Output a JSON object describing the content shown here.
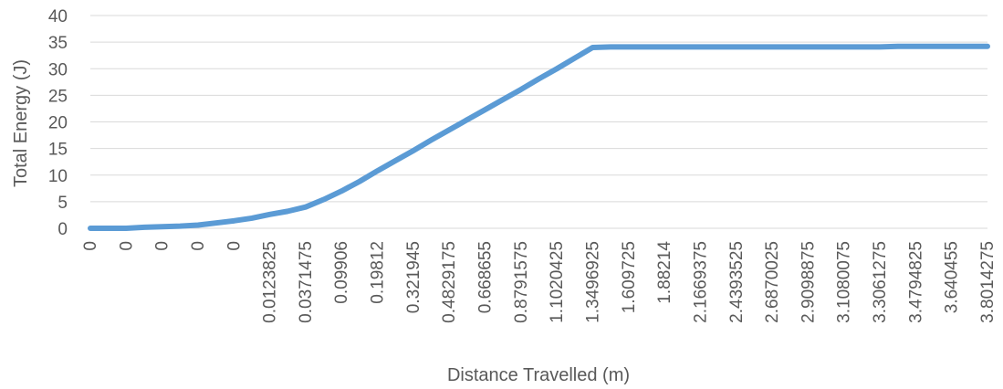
{
  "chart_data": {
    "type": "line",
    "title": "",
    "xlabel": "Distance Travelled (m)",
    "ylabel": "Total Energy (J)",
    "ylim": [
      0,
      40
    ],
    "yticks": [
      "0",
      "5",
      "10",
      "15",
      "20",
      "25",
      "30",
      "35",
      "40"
    ],
    "grid": true,
    "legend": "none",
    "series_color": "#5b9bd5",
    "x_tick_labels": [
      "0",
      "0",
      "0",
      "0",
      "0",
      "0.0123825",
      "0.0371475",
      "0.09906",
      "0.19812",
      "0.321945",
      "0.4829175",
      "0.668655",
      "0.8791575",
      "1.1020425",
      "1.3496925",
      "1.609725",
      "1.88214",
      "2.1669375",
      "2.4393525",
      "2.6870025",
      "2.9098875",
      "3.1080075",
      "3.3061275",
      "3.4794825",
      "3.640455",
      "3.8014275"
    ],
    "x": [
      0,
      0,
      0,
      0,
      0,
      0,
      0,
      0,
      0,
      0,
      0.0123825,
      0.024765,
      0.0371475,
      0.0681038,
      0.09906,
      0.14859,
      0.19812,
      0.2600325,
      0.321945,
      0.4024313,
      0.4829175,
      0.5757863,
      0.668655,
      0.7739063,
      0.8791575,
      0.9906,
      1.1020425,
      1.2258675,
      1.3496925,
      1.4797088,
      1.609725,
      1.7459325,
      1.88214,
      2.0245388,
      2.1669375,
      2.303145,
      2.4393525,
      2.5631775,
      2.6870025,
      2.798445,
      2.9098875,
      3.0089475,
      3.1080075,
      3.2070675,
      3.3061275,
      3.392805,
      3.4794825,
      3.5599688,
      3.640455,
      3.7209413,
      3.8014275
    ],
    "series": [
      {
        "values": [
          0,
          0,
          0,
          0.2,
          0.3,
          0.4,
          0.6,
          1.0,
          1.4,
          1.9,
          2.6,
          3.2,
          4.0,
          5.4,
          7.0,
          8.8,
          10.8,
          12.7,
          14.6,
          16.6,
          18.5,
          20.4,
          22.3,
          24.2,
          26.1,
          28.1,
          30.0,
          32.0,
          34.0,
          34.1,
          34.1,
          34.1,
          34.1,
          34.1,
          34.1,
          34.1,
          34.1,
          34.1,
          34.1,
          34.1,
          34.1,
          34.1,
          34.1,
          34.1,
          34.1,
          34.2,
          34.2,
          34.2,
          34.2,
          34.2,
          34.2
        ]
      }
    ]
  }
}
